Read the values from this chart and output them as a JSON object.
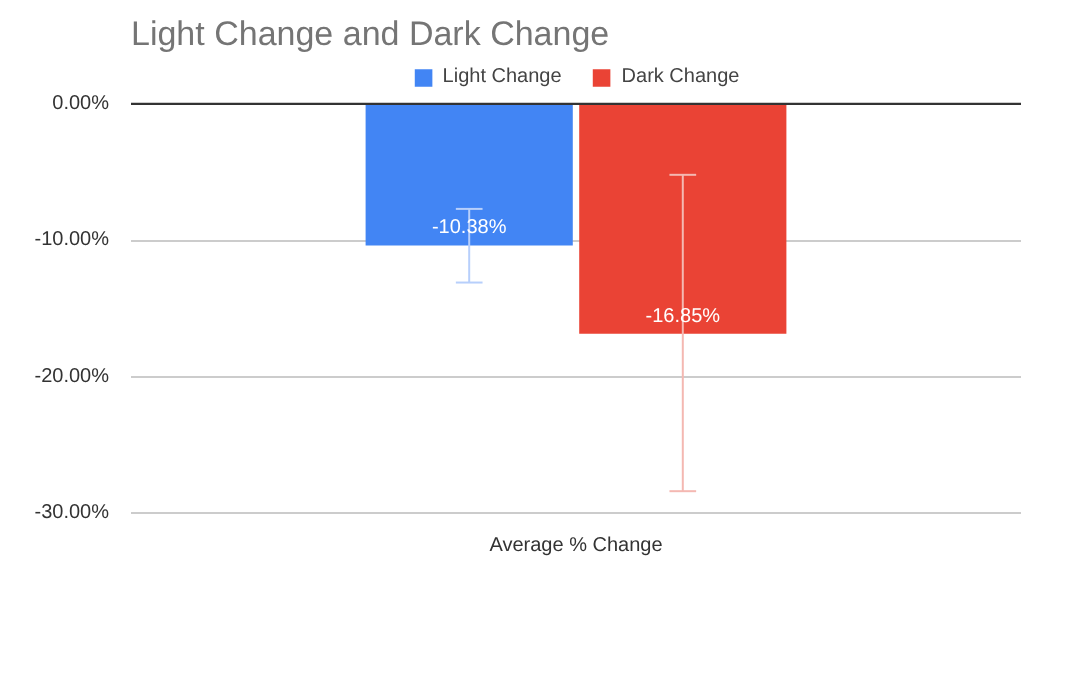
{
  "chart_data": {
    "type": "bar",
    "title": "Light Change and Dark Change",
    "categories": [
      "Average % Change"
    ],
    "series": [
      {
        "name": "Light Change",
        "color": "#4285f4",
        "values": [
          -10.38
        ],
        "value_labels": [
          "-10.38%"
        ],
        "errors": [
          [
            -13.1,
            -7.7
          ]
        ]
      },
      {
        "name": "Dark Change",
        "color": "#ea4335",
        "values": [
          -16.85
        ],
        "value_labels": [
          "-16.85%"
        ],
        "errors": [
          [
            -28.4,
            -5.2
          ]
        ]
      }
    ],
    "ylim": [
      -30,
      0
    ],
    "yticks": [
      {
        "value": 0,
        "label": "0.00%"
      },
      {
        "value": -10,
        "label": "-10.00%"
      },
      {
        "value": -20,
        "label": "-20.00%"
      },
      {
        "value": -30,
        "label": "-30.00%"
      }
    ],
    "grid": "y",
    "legend": "top"
  }
}
